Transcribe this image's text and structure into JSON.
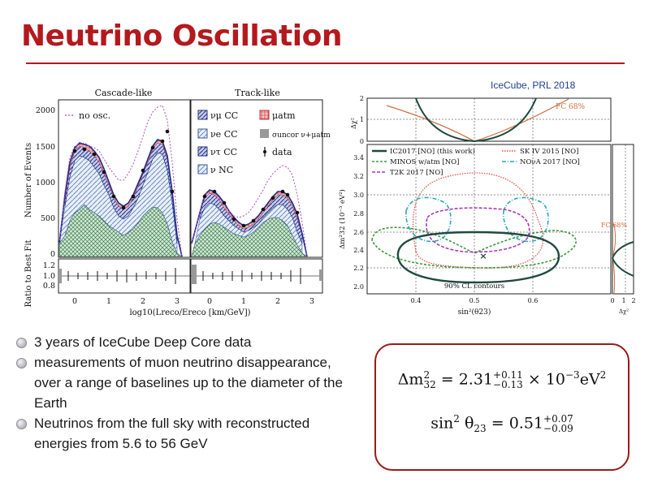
{
  "slide": {
    "title": "Neutrino Oscillation",
    "bullets": [
      "3 years of IceCube Deep Core data",
      "measurements of muon neutrino disappearance, over a range of baselines up to the diameter of the Earth",
      "Neutrinos from the full sky with reconstructed energies from 5.6 to 56 GeV"
    ]
  },
  "left_figure": {
    "panel_titles": [
      "Cascade-like",
      "Track-like"
    ],
    "ylabel": "Number of Events",
    "ratio_label": "Ratio to Best Fit",
    "xlabel": "log10(Lreco/Ereco [km/GeV])",
    "y_ticks": [
      "2000",
      "1500",
      "1000",
      "500",
      "0"
    ],
    "ratio_ticks": [
      "1.2",
      "1.0",
      "0.8"
    ],
    "x_ticks": [
      "0",
      "1",
      "2",
      "3"
    ],
    "legend_no_osc": "no osc.",
    "legend": [
      "νμ CC",
      "μatm",
      "νe CC",
      "σuncor ν+μatm",
      "ντ CC",
      "data",
      "ν NC"
    ]
  },
  "right_figure": {
    "caption": "IceCube, PRL 2018",
    "top_ylabel": "Δχ²",
    "top_ticks": [
      "2",
      "1",
      "0"
    ],
    "fc_label": "FC 68%",
    "fc_label_side": "FC 68%",
    "main_ylabel": "Δm²32 (10⁻³ eV²)",
    "main_y_ticks": [
      "3.4",
      "3.2",
      "3.0",
      "2.8",
      "2.6",
      "2.4",
      "2.2",
      "2.0"
    ],
    "x_ticks": [
      "0.4",
      "0.5",
      "0.6"
    ],
    "xlabel": "sin²(θ23)",
    "side_x_ticks": [
      "0",
      "1",
      "2"
    ],
    "side_xlabel": "Δχ²",
    "contours_label": "90% CL contours",
    "legend": [
      {
        "label": "IC2017 [NO] (this work)",
        "color": "#1f4a3f"
      },
      {
        "label": "SK IV 2015 [NO]",
        "color": "#e34a3a"
      },
      {
        "label": "MINOS w/atm [NO]",
        "color": "#3a9a3a"
      },
      {
        "label": "NOνA 2017 [NO]",
        "color": "#2aa8b8"
      },
      {
        "label": "T2K 2017 [NO]",
        "color": "#a33ab8"
      }
    ]
  },
  "results": {
    "dm2_lhs": "Δm",
    "dm2_sup": "2",
    "dm2_sub": "32",
    "dm2_central": "2.31",
    "dm2_plus": "+0.11",
    "dm2_minus": "−0.13",
    "dm2_units": "× 10",
    "dm2_exp": "−3",
    "dm2_unit2": "eV",
    "dm2_unit_sup": "2",
    "s2_lhs": "sin",
    "s2_sup": "2",
    "s2_theta": "θ",
    "s2_sub": "23",
    "s2_central": "= 0.51",
    "s2_plus": "+0.07",
    "s2_minus": "−0.09"
  }
}
